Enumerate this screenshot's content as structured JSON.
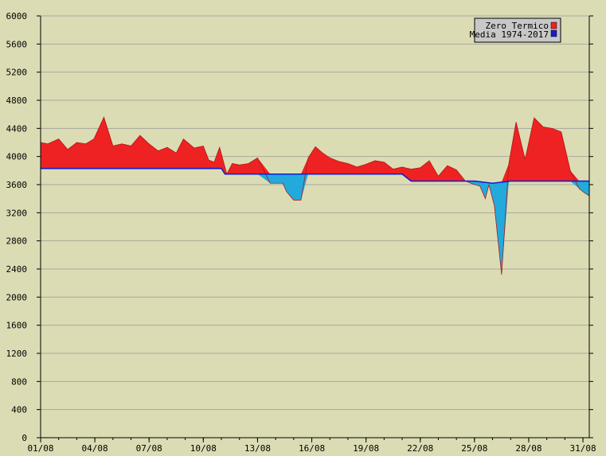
{
  "chart_data": {
    "type": "area",
    "x_tick_labels": [
      "01/08",
      "04/08",
      "07/08",
      "10/08",
      "13/08",
      "16/08",
      "19/08",
      "22/08",
      "25/08",
      "28/08",
      "31/08"
    ],
    "y_tick_labels": [
      "0",
      "400",
      "800",
      "1200",
      "1600",
      "2000",
      "2400",
      "2800",
      "3200",
      "3600",
      "4000",
      "4400",
      "4800",
      "5200",
      "5600",
      "6000"
    ],
    "ylim": [
      0,
      6000
    ],
    "xlim": [
      1,
      31.35
    ],
    "grid": true,
    "legend_position": "top-right",
    "series": [
      {
        "name": "Zero Termico",
        "color": "#ee2222",
        "x": [
          1,
          1.4,
          2,
          2.5,
          3,
          3.5,
          3.95,
          4.5,
          5,
          5.5,
          6,
          6.5,
          7,
          7.5,
          8,
          8.5,
          8.9,
          9.5,
          10,
          10.3,
          10.6,
          10.9,
          11.3,
          11.6,
          12,
          12.5,
          13,
          13.7,
          14.4,
          14.6,
          15,
          15.4,
          15.8,
          16.2,
          16.6,
          17,
          17.5,
          18,
          18.5,
          19,
          19.5,
          20,
          20.5,
          21,
          21.5,
          22,
          22.5,
          23,
          23.5,
          24,
          24.5,
          25,
          25.3,
          25.6,
          25.8,
          26.1,
          26.5,
          26.9,
          27.3,
          27.8,
          28.3,
          28.8,
          29.3,
          29.8,
          30.3,
          30.8,
          31.1,
          31.35
        ],
        "values": [
          4200,
          4180,
          4250,
          4100,
          4200,
          4180,
          4250,
          4560,
          4150,
          4180,
          4150,
          4300,
          4180,
          4080,
          4130,
          4050,
          4250,
          4120,
          4150,
          3950,
          3920,
          4130,
          3750,
          3900,
          3880,
          3900,
          3980,
          3620,
          3620,
          3500,
          3380,
          3380,
          3980,
          4140,
          4050,
          3980,
          3930,
          3900,
          3850,
          3890,
          3940,
          3920,
          3820,
          3850,
          3820,
          3840,
          3940,
          3720,
          3870,
          3810,
          3650,
          3600,
          3580,
          3400,
          3600,
          3300,
          2320,
          3900,
          4490,
          3960,
          4550,
          4420,
          4400,
          4350,
          3800,
          3540,
          3480,
          3440
        ]
      },
      {
        "name": "Media 1974-2017",
        "color": "#1a1acc",
        "negative_fill": "#22aadd",
        "x": [
          1,
          11,
          11.2,
          12,
          21,
          21.5,
          25,
          26,
          27,
          31.35
        ],
        "values": [
          3830,
          3830,
          3750,
          3750,
          3750,
          3650,
          3650,
          3620,
          3650,
          3650
        ]
      }
    ]
  },
  "colors": {
    "background": "#dcdcb4",
    "gridline": "#a8a8a0",
    "above_fill": "#ee2222",
    "below_fill": "#22aadd",
    "legend_bg": "#c8c8c8",
    "axis": "#000000"
  }
}
